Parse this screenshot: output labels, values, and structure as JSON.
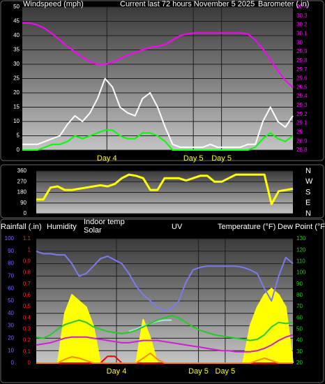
{
  "chart_data": [
    {
      "type": "line",
      "title": "Current last 72 hours November 5 2025",
      "y_label": "Windspeed (mph)",
      "y2_label": "Barometer (.in)",
      "x": [
        0,
        2,
        4,
        6,
        8,
        10,
        12,
        14,
        16,
        18,
        20,
        22,
        24,
        26,
        28,
        30,
        32,
        34,
        36,
        38,
        40,
        42,
        44,
        46,
        48,
        50,
        52,
        54,
        56,
        58,
        60,
        62,
        64,
        66,
        68,
        70,
        72
      ],
      "xlim": [
        0,
        72
      ],
      "xticks": [
        {
          "value": 22.5,
          "label": "Day 4"
        },
        {
          "value": 45.5,
          "label": "Day 5"
        },
        {
          "value": 53,
          "label": "Day 5"
        }
      ],
      "xtick_color": "#ffff00",
      "ylim": [
        0,
        50
      ],
      "yticks": [
        0,
        5,
        10,
        15,
        20,
        25,
        30,
        35,
        40,
        45,
        50
      ],
      "ytick_color": "#ffffff",
      "y2lim": [
        28.8,
        30.4
      ],
      "y2ticks": [
        28.8,
        28.9,
        29,
        29.1,
        29.2,
        29.3,
        29.4,
        29.5,
        29.6,
        29.7,
        29.8,
        29.9,
        30,
        30.1,
        30.2,
        30.3,
        30.4
      ],
      "y2tick_color": "#ff00ff",
      "grid": true,
      "series": [
        {
          "color": "#ffffff",
          "axis": "y",
          "values": [
            2,
            2,
            2,
            3,
            4,
            5,
            9,
            12,
            10,
            13,
            18,
            25,
            22,
            15,
            13,
            12,
            18,
            20,
            15,
            8,
            2,
            1,
            1,
            1,
            1,
            2,
            1,
            1,
            1,
            1,
            2,
            2,
            10,
            15,
            10,
            8,
            12
          ]
        },
        {
          "color": "#00ff00",
          "axis": "y",
          "values": [
            0,
            0,
            0,
            1,
            2,
            2,
            3,
            5,
            4,
            5,
            6,
            7,
            7,
            5,
            4,
            4,
            6,
            6,
            5,
            3,
            0,
            0,
            0,
            0,
            0,
            0,
            0,
            0,
            0,
            0,
            0,
            1,
            4,
            6,
            4,
            3,
            5
          ]
        },
        {
          "color": "#ff00ff",
          "axis": "y2",
          "values": [
            30.22,
            30.22,
            30.2,
            30.16,
            30.1,
            30.03,
            29.96,
            29.9,
            29.84,
            29.79,
            29.76,
            29.76,
            29.78,
            29.82,
            29.86,
            29.89,
            29.92,
            29.95,
            29.96,
            29.98,
            30.03,
            30.08,
            30.1,
            30.11,
            30.11,
            30.11,
            30.11,
            30.11,
            30.11,
            30.11,
            30.1,
            30.03,
            29.93,
            29.81,
            29.69,
            29.58,
            29.5
          ]
        }
      ]
    },
    {
      "type": "line",
      "x": [
        0,
        2,
        4,
        6,
        8,
        10,
        12,
        14,
        16,
        18,
        20,
        22,
        24,
        26,
        28,
        30,
        32,
        34,
        36,
        38,
        40,
        42,
        44,
        46,
        48,
        50,
        52,
        54,
        56,
        58,
        60,
        62,
        64,
        66,
        68,
        70,
        72
      ],
      "xlim": [
        0,
        72
      ],
      "ylim": [
        0,
        360
      ],
      "yticks": [
        0,
        90,
        180,
        270,
        360
      ],
      "ytick_color": "#ffffff",
      "y2lim": [
        0,
        360
      ],
      "y2ticks": [
        {
          "value": 360,
          "label": "N"
        },
        {
          "value": 270,
          "label": "W"
        },
        {
          "value": 180,
          "label": "S"
        },
        {
          "value": 90,
          "label": "E"
        },
        {
          "value": 0,
          "label": "N"
        }
      ],
      "y2tick_color": "#ffffff",
      "grid": true,
      "series": [
        {
          "color": "#ffff00",
          "axis": "y",
          "values": [
            120,
            120,
            220,
            230,
            200,
            200,
            210,
            220,
            230,
            240,
            230,
            250,
            300,
            330,
            320,
            300,
            200,
            200,
            300,
            300,
            300,
            280,
            300,
            320,
            320,
            270,
            270,
            300,
            330,
            330,
            330,
            330,
            330,
            80,
            190,
            200,
            210
          ]
        }
      ]
    },
    {
      "type": "line",
      "x": [
        0,
        2,
        4,
        6,
        8,
        10,
        12,
        14,
        16,
        18,
        20,
        22,
        24,
        26,
        28,
        30,
        32,
        34,
        36,
        38,
        40,
        42,
        44,
        46,
        48,
        50,
        52,
        54,
        56,
        58,
        60,
        62,
        64,
        66,
        68,
        70,
        72
      ],
      "xlim": [
        0,
        72
      ],
      "xticks": [
        {
          "value": 22.5,
          "label": "Day 4"
        },
        {
          "value": 45.5,
          "label": "Day 5"
        },
        {
          "value": 53,
          "label": "Day 5"
        }
      ],
      "xtick_color": "#ffff00",
      "ylim": [
        0,
        100
      ],
      "yticks": [
        0,
        10,
        20,
        30,
        40,
        50,
        60,
        70,
        80,
        90,
        100
      ],
      "ytick_color": "#7070ff",
      "y2lim": [
        20,
        130
      ],
      "y2ticks": [
        20,
        30,
        40,
        50,
        60,
        70,
        80,
        90,
        100,
        110,
        120,
        130
      ],
      "y2tick_color": "#22cc22",
      "y3lim": [
        0,
        1.1
      ],
      "y3ticks": [
        0,
        0.1,
        0.2,
        0.3,
        0.4,
        0.5,
        0.6,
        0.7,
        0.8,
        0.9,
        1,
        1.1
      ],
      "y3tick_color": "#ff2222",
      "grid": true,
      "series": [
        {
          "name": "Rainfall (.in)",
          "color": "#ff0000",
          "axis": "y3",
          "values": [
            0,
            0,
            0,
            0,
            0,
            0,
            0,
            0,
            0,
            0,
            0.06,
            0.06,
            0,
            0,
            0,
            0,
            0,
            0,
            0,
            0,
            0,
            0,
            0,
            0,
            0,
            0,
            0,
            0,
            0,
            0,
            0,
            0,
            0,
            0,
            0,
            0,
            0
          ]
        },
        {
          "name": "Humidity",
          "color": "#7b7bef",
          "axis": "y",
          "values": [
            90,
            88,
            88,
            87,
            87,
            80,
            70,
            72,
            78,
            84,
            86,
            83,
            80,
            72,
            62,
            55,
            50,
            45,
            42,
            44,
            50,
            65,
            75,
            77,
            78,
            78,
            78,
            78,
            78,
            77,
            75,
            72,
            60,
            50,
            70,
            85,
            80
          ]
        },
        {
          "name": "Indoor temp",
          "color": "#a8e8e8",
          "axis": "y2",
          "values": [
            null,
            null,
            null,
            null,
            null,
            null,
            null,
            null,
            null,
            null,
            null,
            null,
            null,
            48,
            50,
            53,
            55,
            57,
            58,
            58,
            null,
            null,
            null,
            null,
            null,
            null,
            null,
            null,
            null,
            null,
            null,
            null,
            null,
            null,
            null,
            null,
            null
          ]
        },
        {
          "name": "Solar",
          "color": "#ffff00",
          "axis": "y",
          "fill": true,
          "values": [
            0,
            0,
            0,
            0,
            40,
            55,
            50,
            45,
            30,
            0,
            0,
            0,
            0,
            0,
            0,
            35,
            20,
            0,
            0,
            0,
            0,
            0,
            0,
            0,
            0,
            0,
            0,
            0,
            0,
            0,
            30,
            45,
            55,
            60,
            55,
            45,
            0
          ]
        },
        {
          "name": "UV",
          "color": "#ff8800",
          "axis": "y",
          "values": [
            0,
            0,
            0,
            0,
            3,
            5,
            4,
            2,
            0,
            0,
            0,
            0,
            0,
            0,
            0,
            4,
            8,
            3,
            0,
            0,
            0,
            0,
            0,
            0,
            0,
            0,
            0,
            0,
            0,
            0,
            0,
            2,
            4,
            2,
            0,
            0,
            0
          ]
        },
        {
          "name": "Temperature (°F)",
          "color": "#22cc22",
          "axis": "y2",
          "values": [
            43,
            42,
            45,
            50,
            54,
            56,
            58,
            56,
            52,
            50,
            48,
            47,
            46,
            47,
            49,
            52,
            55,
            58,
            60,
            62,
            60,
            56,
            52,
            49,
            47,
            45,
            44,
            43,
            42,
            41,
            40,
            41,
            45,
            52,
            56,
            55,
            56
          ]
        },
        {
          "name": "Dew Point (°F)",
          "color": "#d01fd0",
          "axis": "y2",
          "values": [
            36,
            37,
            38,
            40,
            42,
            43,
            43,
            43,
            42,
            41,
            40,
            39,
            38,
            38,
            39,
            40,
            40,
            40,
            39,
            38,
            37,
            36,
            35,
            34,
            33,
            32,
            31,
            31,
            30,
            30,
            30,
            31,
            33,
            36,
            40,
            43,
            45
          ]
        }
      ]
    }
  ]
}
